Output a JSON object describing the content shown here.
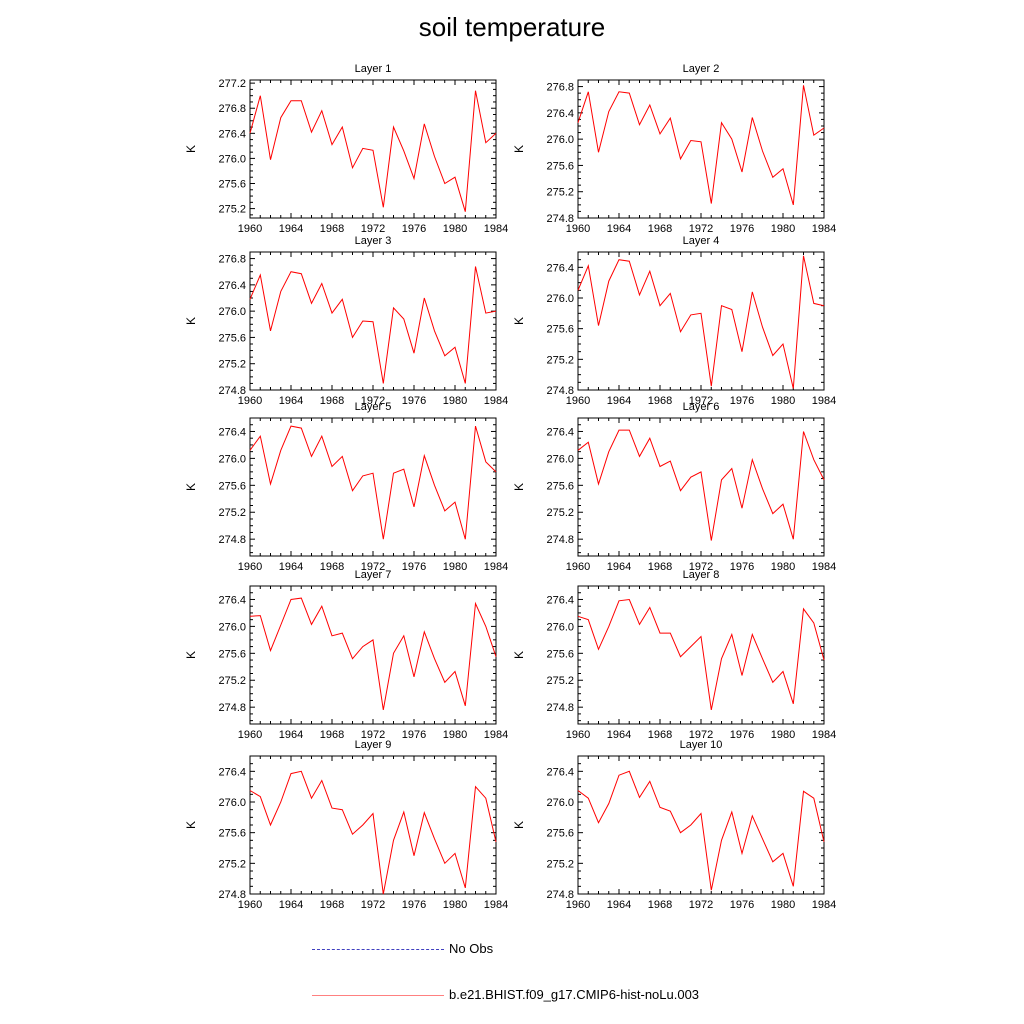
{
  "figure": {
    "title": "soil temperature"
  },
  "colors": {
    "model_line": "#ff0000",
    "obs_line": "#4040c0",
    "axis": "#000000"
  },
  "legend": {
    "items": [
      {
        "label": "No Obs",
        "style": "dashed",
        "color": "#4040c0"
      },
      {
        "label": "b.e21.BHIST.f09_g17.CMIP6-hist-noLu.003",
        "style": "solid",
        "color": "#ff0000"
      }
    ]
  },
  "chart_data": [
    {
      "type": "line",
      "title": "Layer 1",
      "xlabel": "",
      "ylabel": "K",
      "xlim": [
        1960,
        1984
      ],
      "ylim": [
        275.05,
        277.25
      ],
      "xticks": [
        1960,
        1964,
        1968,
        1972,
        1976,
        1980,
        1984
      ],
      "yticks": [
        "275.2",
        "275.6",
        "276.0",
        "276.4",
        "276.8",
        "277.2"
      ],
      "x": [
        1960,
        1961,
        1962,
        1963,
        1964,
        1965,
        1966,
        1967,
        1968,
        1969,
        1970,
        1971,
        1972,
        1973,
        1974,
        1975,
        1976,
        1977,
        1978,
        1979,
        1980,
        1981,
        1982,
        1983,
        1984
      ],
      "series": [
        {
          "name": "b.e21.BHIST.f09_g17.CMIP6-hist-noLu.003",
          "values": [
            276.4,
            277.0,
            275.98,
            276.65,
            276.92,
            276.92,
            276.42,
            276.76,
            276.22,
            276.5,
            275.85,
            276.16,
            276.13,
            275.22,
            276.5,
            276.12,
            275.68,
            276.55,
            276.03,
            275.6,
            275.7,
            275.15,
            277.08,
            276.25,
            276.4
          ]
        }
      ]
    },
    {
      "type": "line",
      "title": "Layer 2",
      "xlabel": "",
      "ylabel": "K",
      "xlim": [
        1960,
        1984
      ],
      "ylim": [
        274.8,
        276.9
      ],
      "xticks": [
        1960,
        1964,
        1968,
        1972,
        1976,
        1980,
        1984
      ],
      "yticks": [
        "274.8",
        "275.2",
        "275.6",
        "276.0",
        "276.4",
        "276.8"
      ],
      "x": [
        1960,
        1961,
        1962,
        1963,
        1964,
        1965,
        1966,
        1967,
        1968,
        1969,
        1970,
        1971,
        1972,
        1973,
        1974,
        1975,
        1976,
        1977,
        1978,
        1979,
        1980,
        1981,
        1982,
        1983,
        1984
      ],
      "series": [
        {
          "name": "b.e21.BHIST.f09_g17.CMIP6-hist-noLu.003",
          "values": [
            276.25,
            276.72,
            275.8,
            276.42,
            276.72,
            276.7,
            276.22,
            276.52,
            276.08,
            276.32,
            275.7,
            275.98,
            275.96,
            275.02,
            276.25,
            276.0,
            275.5,
            276.33,
            275.82,
            275.42,
            275.55,
            275.0,
            276.82,
            276.06,
            276.17
          ]
        }
      ]
    },
    {
      "type": "line",
      "title": "Layer 3",
      "xlabel": "",
      "ylabel": "K",
      "xlim": [
        1960,
        1984
      ],
      "ylim": [
        274.8,
        276.9
      ],
      "xticks": [
        1960,
        1964,
        1968,
        1972,
        1976,
        1980,
        1984
      ],
      "yticks": [
        "274.8",
        "275.2",
        "275.6",
        "276.0",
        "276.4",
        "276.8"
      ],
      "x": [
        1960,
        1961,
        1962,
        1963,
        1964,
        1965,
        1966,
        1967,
        1968,
        1969,
        1970,
        1971,
        1972,
        1973,
        1974,
        1975,
        1976,
        1977,
        1978,
        1979,
        1980,
        1981,
        1982,
        1983,
        1984
      ],
      "series": [
        {
          "name": "b.e21.BHIST.f09_g17.CMIP6-hist-noLu.003",
          "values": [
            276.18,
            276.55,
            275.7,
            276.3,
            276.6,
            276.57,
            276.12,
            276.42,
            275.97,
            276.18,
            275.6,
            275.85,
            275.84,
            274.9,
            276.05,
            275.88,
            275.36,
            276.2,
            275.7,
            275.32,
            275.45,
            274.9,
            276.68,
            275.97,
            276.0
          ]
        }
      ]
    },
    {
      "type": "line",
      "title": "Layer 4",
      "xlabel": "",
      "ylabel": "K",
      "xlim": [
        1960,
        1984
      ],
      "ylim": [
        274.8,
        276.6
      ],
      "xticks": [
        1960,
        1964,
        1968,
        1972,
        1976,
        1980,
        1984
      ],
      "yticks": [
        "274.8",
        "275.2",
        "275.6",
        "276.0",
        "276.4"
      ],
      "x": [
        1960,
        1961,
        1962,
        1963,
        1964,
        1965,
        1966,
        1967,
        1968,
        1969,
        1970,
        1971,
        1972,
        1973,
        1974,
        1975,
        1976,
        1977,
        1978,
        1979,
        1980,
        1981,
        1982,
        1983,
        1984
      ],
      "series": [
        {
          "name": "b.e21.BHIST.f09_g17.CMIP6-hist-noLu.003",
          "values": [
            276.1,
            276.42,
            275.64,
            276.22,
            276.5,
            276.48,
            276.04,
            276.35,
            275.9,
            276.06,
            275.56,
            275.78,
            275.8,
            274.85,
            275.9,
            275.85,
            275.3,
            276.08,
            275.62,
            275.25,
            275.4,
            274.82,
            276.55,
            275.93,
            275.9
          ]
        }
      ]
    },
    {
      "type": "line",
      "title": "Layer 5",
      "xlabel": "",
      "ylabel": "K",
      "xlim": [
        1960,
        1984
      ],
      "ylim": [
        274.55,
        276.6
      ],
      "xticks": [
        1960,
        1964,
        1968,
        1972,
        1976,
        1980,
        1984
      ],
      "yticks": [
        "274.8",
        "275.2",
        "275.6",
        "276.0",
        "276.4"
      ],
      "x": [
        1960,
        1961,
        1962,
        1963,
        1964,
        1965,
        1966,
        1967,
        1968,
        1969,
        1970,
        1971,
        1972,
        1973,
        1974,
        1975,
        1976,
        1977,
        1978,
        1979,
        1980,
        1981,
        1982,
        1983,
        1984
      ],
      "series": [
        {
          "name": "b.e21.BHIST.f09_g17.CMIP6-hist-noLu.003",
          "values": [
            276.12,
            276.33,
            275.62,
            276.12,
            276.48,
            276.45,
            276.03,
            276.33,
            275.88,
            276.03,
            275.52,
            275.74,
            275.78,
            274.8,
            275.78,
            275.84,
            275.28,
            276.04,
            275.6,
            275.22,
            275.35,
            274.8,
            276.48,
            275.95,
            275.8
          ]
        }
      ]
    },
    {
      "type": "line",
      "title": "Layer 6",
      "xlabel": "",
      "ylabel": "K",
      "xlim": [
        1960,
        1984
      ],
      "ylim": [
        274.55,
        276.6
      ],
      "xticks": [
        1960,
        1964,
        1968,
        1972,
        1976,
        1980,
        1984
      ],
      "yticks": [
        "274.8",
        "275.2",
        "275.6",
        "276.0",
        "276.4"
      ],
      "x": [
        1960,
        1961,
        1962,
        1963,
        1964,
        1965,
        1966,
        1967,
        1968,
        1969,
        1970,
        1971,
        1972,
        1973,
        1974,
        1975,
        1976,
        1977,
        1978,
        1979,
        1980,
        1981,
        1982,
        1983,
        1984
      ],
      "series": [
        {
          "name": "b.e21.BHIST.f09_g17.CMIP6-hist-noLu.003",
          "values": [
            276.12,
            276.24,
            275.62,
            276.1,
            276.42,
            276.42,
            276.03,
            276.3,
            275.88,
            275.96,
            275.52,
            275.72,
            275.8,
            274.78,
            275.68,
            275.85,
            275.26,
            275.98,
            275.55,
            275.18,
            275.32,
            274.8,
            276.4,
            275.98,
            275.68
          ]
        }
      ]
    },
    {
      "type": "line",
      "title": "Layer 7",
      "xlabel": "",
      "ylabel": "K",
      "xlim": [
        1960,
        1984
      ],
      "ylim": [
        274.55,
        276.6
      ],
      "xticks": [
        1960,
        1964,
        1968,
        1972,
        1976,
        1980,
        1984
      ],
      "yticks": [
        "274.8",
        "275.2",
        "275.6",
        "276.0",
        "276.4"
      ],
      "x": [
        1960,
        1961,
        1962,
        1963,
        1964,
        1965,
        1966,
        1967,
        1968,
        1969,
        1970,
        1971,
        1972,
        1973,
        1974,
        1975,
        1976,
        1977,
        1978,
        1979,
        1980,
        1981,
        1982,
        1983,
        1984
      ],
      "series": [
        {
          "name": "b.e21.BHIST.f09_g17.CMIP6-hist-noLu.003",
          "values": [
            276.15,
            276.16,
            275.64,
            276.02,
            276.4,
            276.42,
            276.03,
            276.3,
            275.86,
            275.9,
            275.52,
            275.7,
            275.8,
            274.76,
            275.6,
            275.86,
            275.25,
            275.92,
            275.52,
            275.17,
            275.33,
            274.82,
            276.34,
            276.0,
            275.55
          ]
        }
      ]
    },
    {
      "type": "line",
      "title": "Layer 8",
      "xlabel": "",
      "ylabel": "K",
      "xlim": [
        1960,
        1984
      ],
      "ylim": [
        274.55,
        276.6
      ],
      "xticks": [
        1960,
        1964,
        1968,
        1972,
        1976,
        1980,
        1984
      ],
      "yticks": [
        "274.8",
        "275.2",
        "275.6",
        "276.0",
        "276.4"
      ],
      "x": [
        1960,
        1961,
        1962,
        1963,
        1964,
        1965,
        1966,
        1967,
        1968,
        1969,
        1970,
        1971,
        1972,
        1973,
        1974,
        1975,
        1976,
        1977,
        1978,
        1979,
        1980,
        1981,
        1982,
        1983,
        1984
      ],
      "series": [
        {
          "name": "b.e21.BHIST.f09_g17.CMIP6-hist-noLu.003",
          "values": [
            276.15,
            276.1,
            275.66,
            276.0,
            276.38,
            276.4,
            276.03,
            276.28,
            275.9,
            275.9,
            275.55,
            275.7,
            275.85,
            274.76,
            275.52,
            275.88,
            275.27,
            275.88,
            275.52,
            275.17,
            275.33,
            274.85,
            276.26,
            276.05,
            275.5
          ]
        }
      ]
    },
    {
      "type": "line",
      "title": "Layer 9",
      "xlabel": "",
      "ylabel": "K",
      "xlim": [
        1960,
        1984
      ],
      "ylim": [
        274.8,
        276.6
      ],
      "xticks": [
        1960,
        1964,
        1968,
        1972,
        1976,
        1980,
        1984
      ],
      "yticks": [
        "274.8",
        "275.2",
        "275.6",
        "276.0",
        "276.4"
      ],
      "x": [
        1960,
        1961,
        1962,
        1963,
        1964,
        1965,
        1966,
        1967,
        1968,
        1969,
        1970,
        1971,
        1972,
        1973,
        1974,
        1975,
        1976,
        1977,
        1978,
        1979,
        1980,
        1981,
        1982,
        1983,
        1984
      ],
      "series": [
        {
          "name": "b.e21.BHIST.f09_g17.CMIP6-hist-noLu.003",
          "values": [
            276.15,
            276.07,
            275.7,
            276.0,
            276.37,
            276.4,
            276.05,
            276.28,
            275.92,
            275.9,
            275.58,
            275.7,
            275.85,
            274.8,
            275.5,
            275.87,
            275.3,
            275.86,
            275.52,
            275.2,
            275.33,
            274.88,
            276.2,
            276.05,
            275.48
          ]
        }
      ]
    },
    {
      "type": "line",
      "title": "Layer 10",
      "xlabel": "",
      "ylabel": "K",
      "xlim": [
        1960,
        1984
      ],
      "ylim": [
        274.8,
        276.6
      ],
      "xticks": [
        1960,
        1964,
        1968,
        1972,
        1976,
        1980,
        1984
      ],
      "yticks": [
        "274.8",
        "275.2",
        "275.6",
        "276.0",
        "276.4"
      ],
      "x": [
        1960,
        1961,
        1962,
        1963,
        1964,
        1965,
        1966,
        1967,
        1968,
        1969,
        1970,
        1971,
        1972,
        1973,
        1974,
        1975,
        1976,
        1977,
        1978,
        1979,
        1980,
        1981,
        1982,
        1983,
        1984
      ],
      "series": [
        {
          "name": "b.e21.BHIST.f09_g17.CMIP6-hist-noLu.003",
          "values": [
            276.15,
            276.05,
            275.73,
            275.98,
            276.35,
            276.4,
            276.06,
            276.27,
            275.93,
            275.88,
            275.6,
            275.7,
            275.85,
            274.85,
            275.5,
            275.87,
            275.33,
            275.82,
            275.52,
            275.22,
            275.33,
            274.9,
            276.14,
            276.05,
            275.48
          ]
        }
      ]
    }
  ]
}
